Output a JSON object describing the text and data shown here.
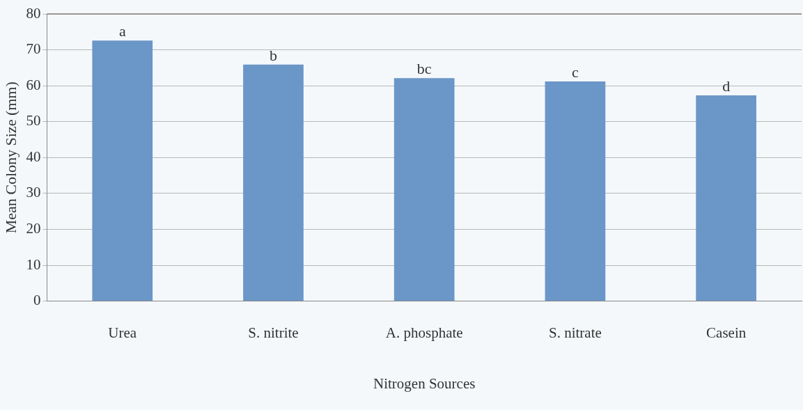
{
  "chart_data": {
    "type": "bar",
    "xlabel": "Nitrogen Sources",
    "ylabel": "Mean Colony Size (mm)",
    "categories": [
      "Urea",
      "S. nitrite",
      "A. phosphate",
      "S. nitrate",
      "Casein"
    ],
    "values": [
      72.6,
      65.9,
      62.1,
      61.2,
      57.3
    ],
    "color": "#6b96c8",
    "ylim": [
      0,
      80
    ],
    "yticks": [
      0,
      10,
      20,
      30,
      40,
      50,
      60,
      70,
      80
    ],
    "grid": "y",
    "legend": false,
    "annotations": [
      {
        "text": "a",
        "x": "Urea",
        "y": 72.6
      },
      {
        "text": "b",
        "x": "S. nitrite",
        "y": 65.9
      },
      {
        "text": "bc",
        "x": "A. phosphate",
        "y": 62.1
      },
      {
        "text": "c",
        "x": "S. nitrate",
        "y": 61.2
      },
      {
        "text": "d",
        "x": "Casein",
        "y": 57.3
      }
    ]
  }
}
